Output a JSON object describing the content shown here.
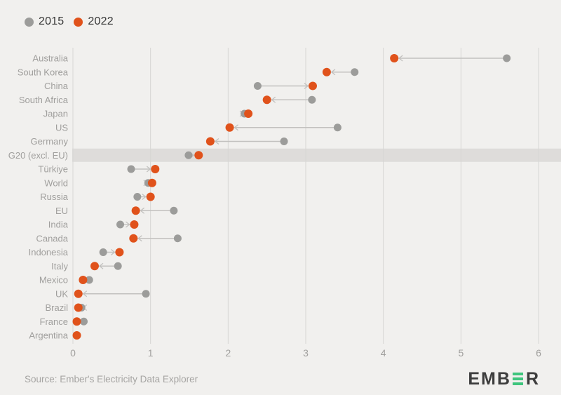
{
  "legend": {
    "items": [
      {
        "label": "2015",
        "color": "#9c9c9a"
      },
      {
        "label": "2022",
        "color": "#e0521b"
      }
    ]
  },
  "chart_data": {
    "type": "scatter",
    "subtype": "dumbbell-dot-plot",
    "title": "",
    "categories": [
      "Australia",
      "South Korea",
      "China",
      "South Africa",
      "Japan",
      "US",
      "Germany",
      "G20 (excl. EU)",
      "Türkiye",
      "World",
      "Russia",
      "EU",
      "India",
      "Canada",
      "Indonesia",
      "Italy",
      "Mexico",
      "UK",
      "Brazil",
      "France",
      "Argentina"
    ],
    "series": [
      {
        "name": "2015",
        "color": "#9c9c9a",
        "values": [
          5.59,
          3.63,
          2.38,
          3.08,
          2.21,
          3.41,
          2.72,
          1.49,
          0.75,
          0.97,
          0.83,
          1.3,
          0.61,
          1.35,
          0.39,
          0.58,
          0.21,
          0.94,
          0.11,
          0.14,
          0.05
        ]
      },
      {
        "name": "2022",
        "color": "#e0521b",
        "values": [
          4.14,
          3.27,
          3.09,
          2.5,
          2.26,
          2.02,
          1.77,
          1.62,
          1.06,
          1.02,
          1.0,
          0.81,
          0.79,
          0.78,
          0.6,
          0.28,
          0.13,
          0.07,
          0.07,
          0.05,
          0.05
        ]
      }
    ],
    "x_ticks": [
      0,
      1,
      2,
      3,
      4,
      5,
      6
    ],
    "xlim": [
      0,
      6
    ],
    "xlabel": "",
    "ylabel": "",
    "grid": "vertical",
    "legend_position": "top-left",
    "highlight_category": "G20 (excl. EU)",
    "arrows": "from 2015 dot toward 2022 dot"
  },
  "colors": {
    "background": "#f1f0ee",
    "grid": "#d7d6d4",
    "band": "#dedcda",
    "axis_text": "#a09f9d",
    "connector": "#c2c1bf"
  },
  "footer": {
    "source": "Source: Ember's Electricity Data Explorer"
  },
  "logo": {
    "text_before": "EMB",
    "text_after": "R",
    "green": "#3ec57d"
  }
}
